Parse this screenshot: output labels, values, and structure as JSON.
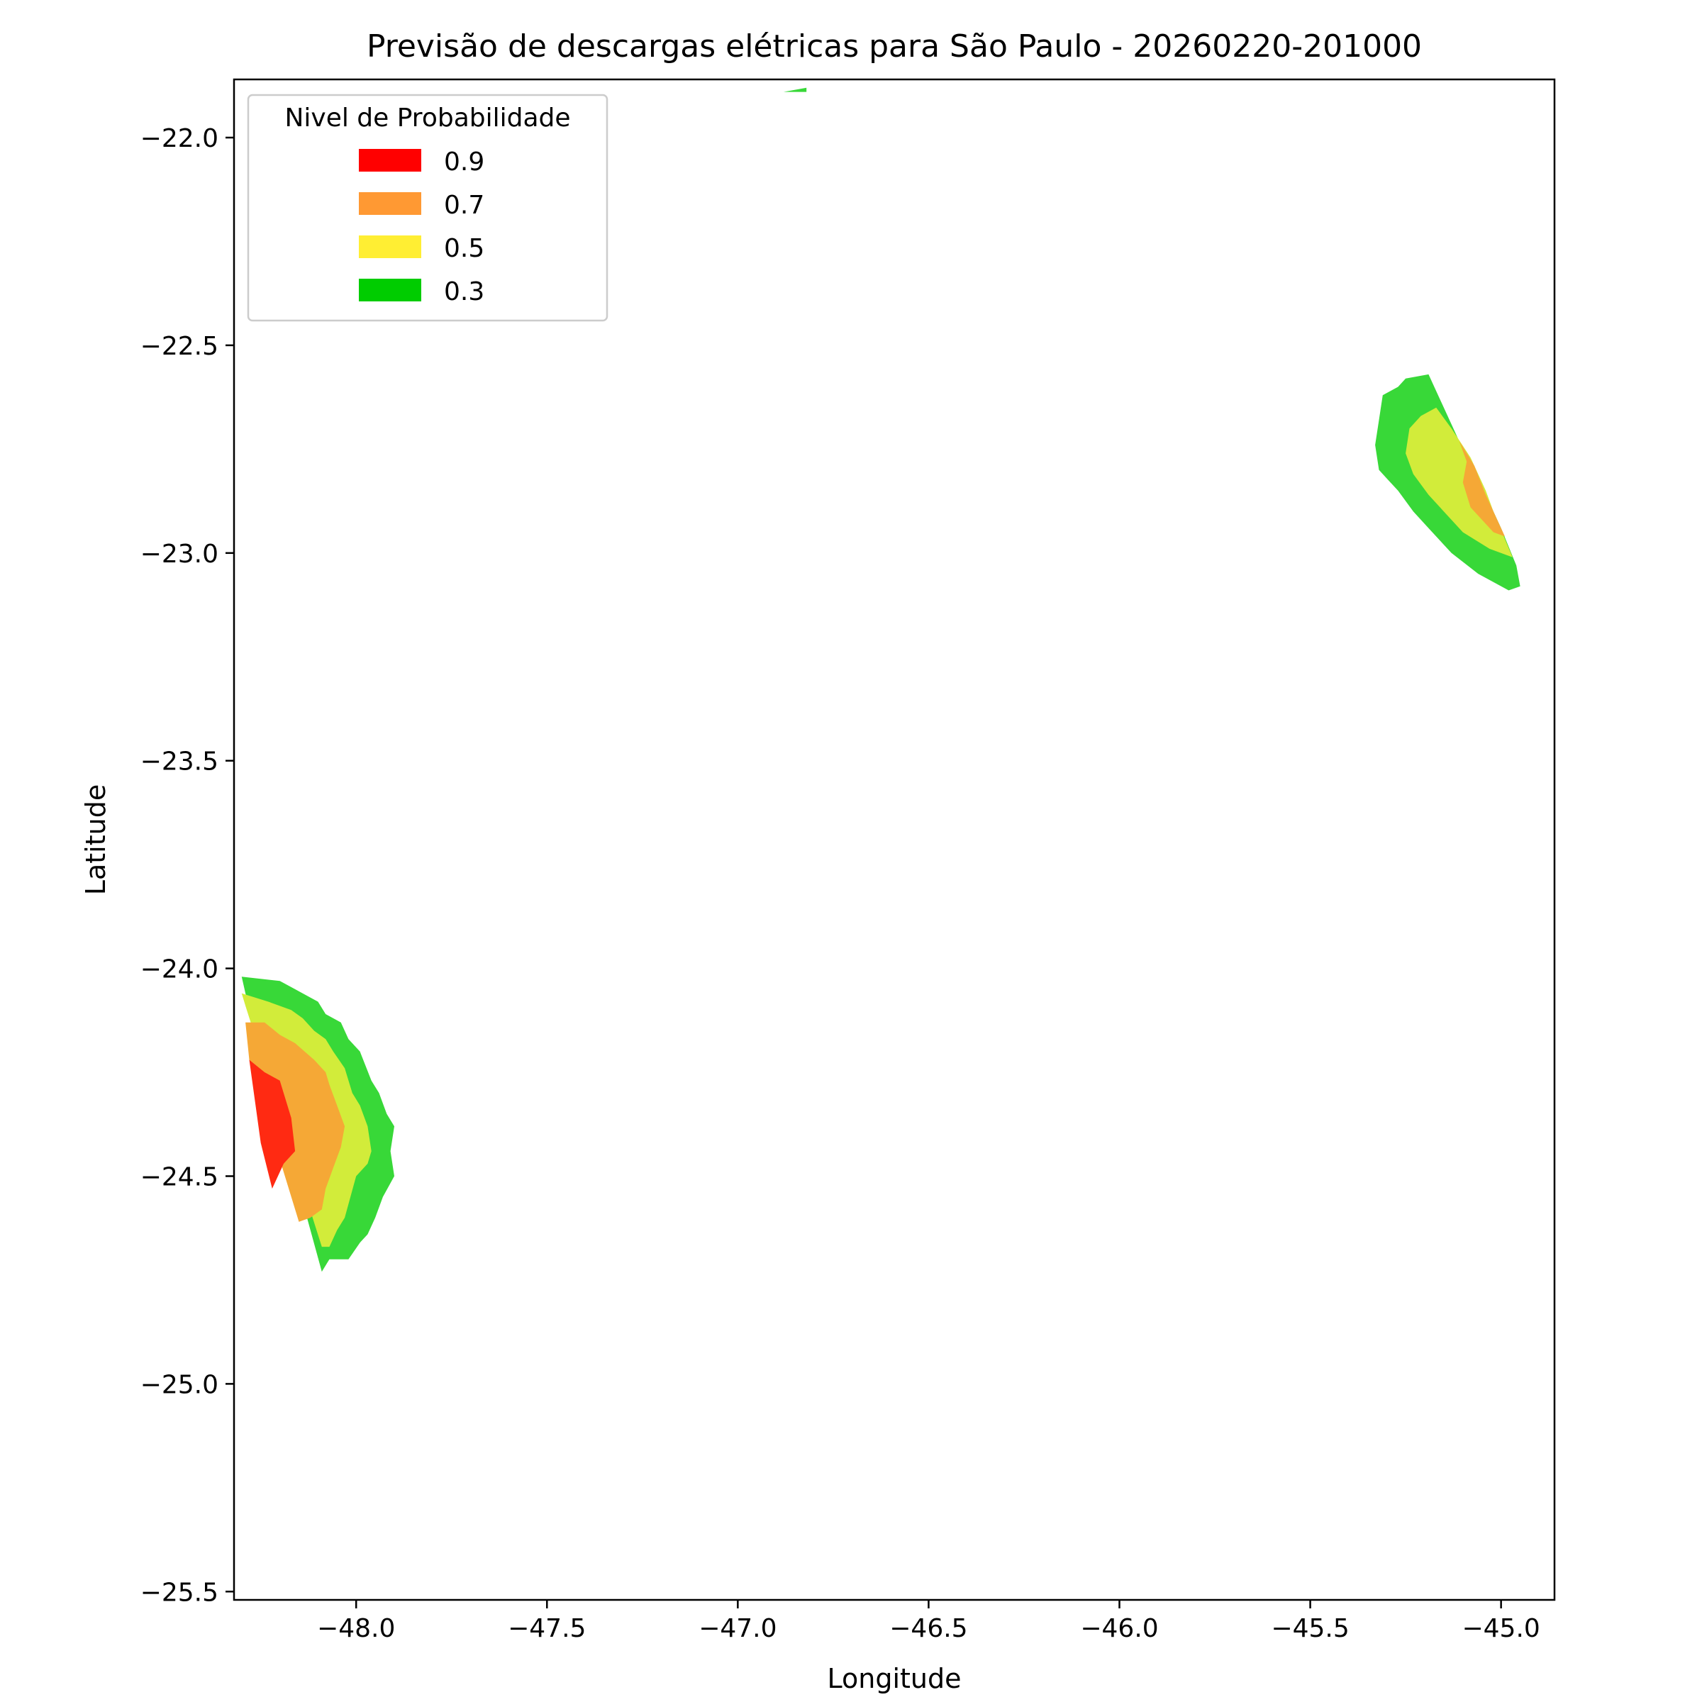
{
  "chart_data": {
    "type": "contourf",
    "title": "Previsão de descargas elétricas para São Paulo - 20260220-201000",
    "xlabel": "Longitude",
    "ylabel": "Latitude",
    "xlim": [
      -48.32,
      -44.86
    ],
    "ylim": [
      -25.52,
      -21.86
    ],
    "xticks": [
      -48.0,
      -47.5,
      -47.0,
      -46.5,
      -46.0,
      -45.5,
      -45.0
    ],
    "xtick_labels": [
      "−48.0",
      "−47.5",
      "−47.0",
      "−46.5",
      "−46.0",
      "−45.5",
      "−45.0"
    ],
    "yticks": [
      -22.0,
      -22.5,
      -23.0,
      -23.5,
      -24.0,
      -24.5,
      -25.0,
      -25.5
    ],
    "ytick_labels": [
      "−22.0",
      "−22.5",
      "−23.0",
      "−23.5",
      "−24.0",
      "−24.5",
      "−25.0",
      "−25.5"
    ],
    "grid": false,
    "legend": {
      "title": "Nivel de Probabilidade",
      "placement": "top-left",
      "entries": [
        {
          "label": "0.9",
          "color": "#ff0000"
        },
        {
          "label": "0.7",
          "color": "#ff9933"
        },
        {
          "label": "0.5",
          "color": "#ffee33"
        },
        {
          "label": "0.3",
          "color": "#00cc00"
        }
      ]
    },
    "fill_colors": {
      "0.3": "#38d838",
      "0.5": "#d2ec3a",
      "0.7": "#f5a836",
      "0.9": "#ff2a12"
    },
    "regions": [
      {
        "level": "0.3",
        "points": [
          [
            -48.3,
            -24.02
          ],
          [
            -48.2,
            -24.03
          ],
          [
            -48.16,
            -24.05
          ],
          [
            -48.12,
            -24.07
          ],
          [
            -48.1,
            -24.08
          ],
          [
            -48.08,
            -24.11
          ],
          [
            -48.04,
            -24.13
          ],
          [
            -48.02,
            -24.17
          ],
          [
            -47.99,
            -24.2
          ],
          [
            -47.96,
            -24.27
          ],
          [
            -47.94,
            -24.3
          ],
          [
            -47.92,
            -24.35
          ],
          [
            -47.9,
            -24.38
          ],
          [
            -47.91,
            -24.44
          ],
          [
            -47.9,
            -24.5
          ],
          [
            -47.93,
            -24.55
          ],
          [
            -47.95,
            -24.6
          ],
          [
            -47.97,
            -24.64
          ],
          [
            -47.99,
            -24.66
          ],
          [
            -48.02,
            -24.7
          ],
          [
            -48.05,
            -24.7
          ],
          [
            -48.07,
            -24.7
          ],
          [
            -48.09,
            -24.73
          ],
          [
            -48.29,
            -24.06
          ]
        ]
      },
      {
        "level": "0.5",
        "points": [
          [
            -48.3,
            -24.06
          ],
          [
            -48.23,
            -24.08
          ],
          [
            -48.17,
            -24.1
          ],
          [
            -48.14,
            -24.12
          ],
          [
            -48.11,
            -24.15
          ],
          [
            -48.08,
            -24.17
          ],
          [
            -48.06,
            -24.2
          ],
          [
            -48.03,
            -24.24
          ],
          [
            -48.01,
            -24.3
          ],
          [
            -47.99,
            -24.33
          ],
          [
            -47.97,
            -24.38
          ],
          [
            -47.96,
            -24.44
          ],
          [
            -47.97,
            -24.47
          ],
          [
            -48.0,
            -24.5
          ],
          [
            -48.03,
            -24.6
          ],
          [
            -48.05,
            -24.63
          ],
          [
            -48.07,
            -24.67
          ],
          [
            -48.09,
            -24.67
          ],
          [
            -48.29,
            -24.09
          ]
        ]
      },
      {
        "level": "0.7",
        "points": [
          [
            -48.29,
            -24.13
          ],
          [
            -48.24,
            -24.13
          ],
          [
            -48.2,
            -24.16
          ],
          [
            -48.16,
            -24.18
          ],
          [
            -48.11,
            -24.22
          ],
          [
            -48.08,
            -24.25
          ],
          [
            -48.07,
            -24.28
          ],
          [
            -48.05,
            -24.33
          ],
          [
            -48.03,
            -24.38
          ],
          [
            -48.04,
            -24.43
          ],
          [
            -48.06,
            -24.48
          ],
          [
            -48.08,
            -24.53
          ],
          [
            -48.09,
            -24.58
          ],
          [
            -48.12,
            -24.6
          ],
          [
            -48.15,
            -24.61
          ],
          [
            -48.28,
            -24.22
          ]
        ]
      },
      {
        "level": "0.9",
        "points": [
          [
            -48.28,
            -24.22
          ],
          [
            -48.24,
            -24.25
          ],
          [
            -48.2,
            -24.27
          ],
          [
            -48.17,
            -24.36
          ],
          [
            -48.16,
            -24.44
          ],
          [
            -48.19,
            -24.47
          ],
          [
            -48.22,
            -24.53
          ],
          [
            -48.25,
            -24.42
          ]
        ]
      },
      {
        "level": "0.3",
        "points": [
          [
            -45.31,
            -22.62
          ],
          [
            -45.27,
            -22.6
          ],
          [
            -45.25,
            -22.58
          ],
          [
            -45.19,
            -22.57
          ],
          [
            -45.1,
            -22.75
          ],
          [
            -45.03,
            -22.88
          ],
          [
            -45.0,
            -22.94
          ],
          [
            -44.96,
            -23.03
          ],
          [
            -44.95,
            -23.08
          ],
          [
            -44.98,
            -23.09
          ],
          [
            -45.06,
            -23.05
          ],
          [
            -45.13,
            -23.0
          ],
          [
            -45.19,
            -22.94
          ],
          [
            -45.23,
            -22.9
          ],
          [
            -45.27,
            -22.85
          ],
          [
            -45.3,
            -22.82
          ],
          [
            -45.32,
            -22.8
          ],
          [
            -45.33,
            -22.74
          ],
          [
            -45.32,
            -22.68
          ]
        ]
      },
      {
        "level": "0.5",
        "points": [
          [
            -45.24,
            -22.7
          ],
          [
            -45.21,
            -22.67
          ],
          [
            -45.17,
            -22.65
          ],
          [
            -45.13,
            -22.7
          ],
          [
            -45.08,
            -22.77
          ],
          [
            -45.04,
            -22.85
          ],
          [
            -45.02,
            -22.9
          ],
          [
            -44.97,
            -23.01
          ],
          [
            -45.03,
            -22.99
          ],
          [
            -45.1,
            -22.95
          ],
          [
            -45.15,
            -22.9
          ],
          [
            -45.19,
            -22.86
          ],
          [
            -45.23,
            -22.81
          ],
          [
            -45.25,
            -22.76
          ]
        ]
      },
      {
        "level": "0.7",
        "points": [
          [
            -45.11,
            -22.73
          ],
          [
            -45.09,
            -22.78
          ],
          [
            -45.1,
            -22.83
          ],
          [
            -45.08,
            -22.89
          ],
          [
            -45.02,
            -22.95
          ],
          [
            -44.99,
            -22.96
          ],
          [
            -45.04,
            -22.86
          ],
          [
            -45.07,
            -22.79
          ]
        ]
      },
      {
        "level": "0.3",
        "points": [
          [
            -46.88,
            -21.89
          ],
          [
            -46.82,
            -21.88
          ],
          [
            -46.82,
            -21.89
          ]
        ]
      }
    ]
  }
}
